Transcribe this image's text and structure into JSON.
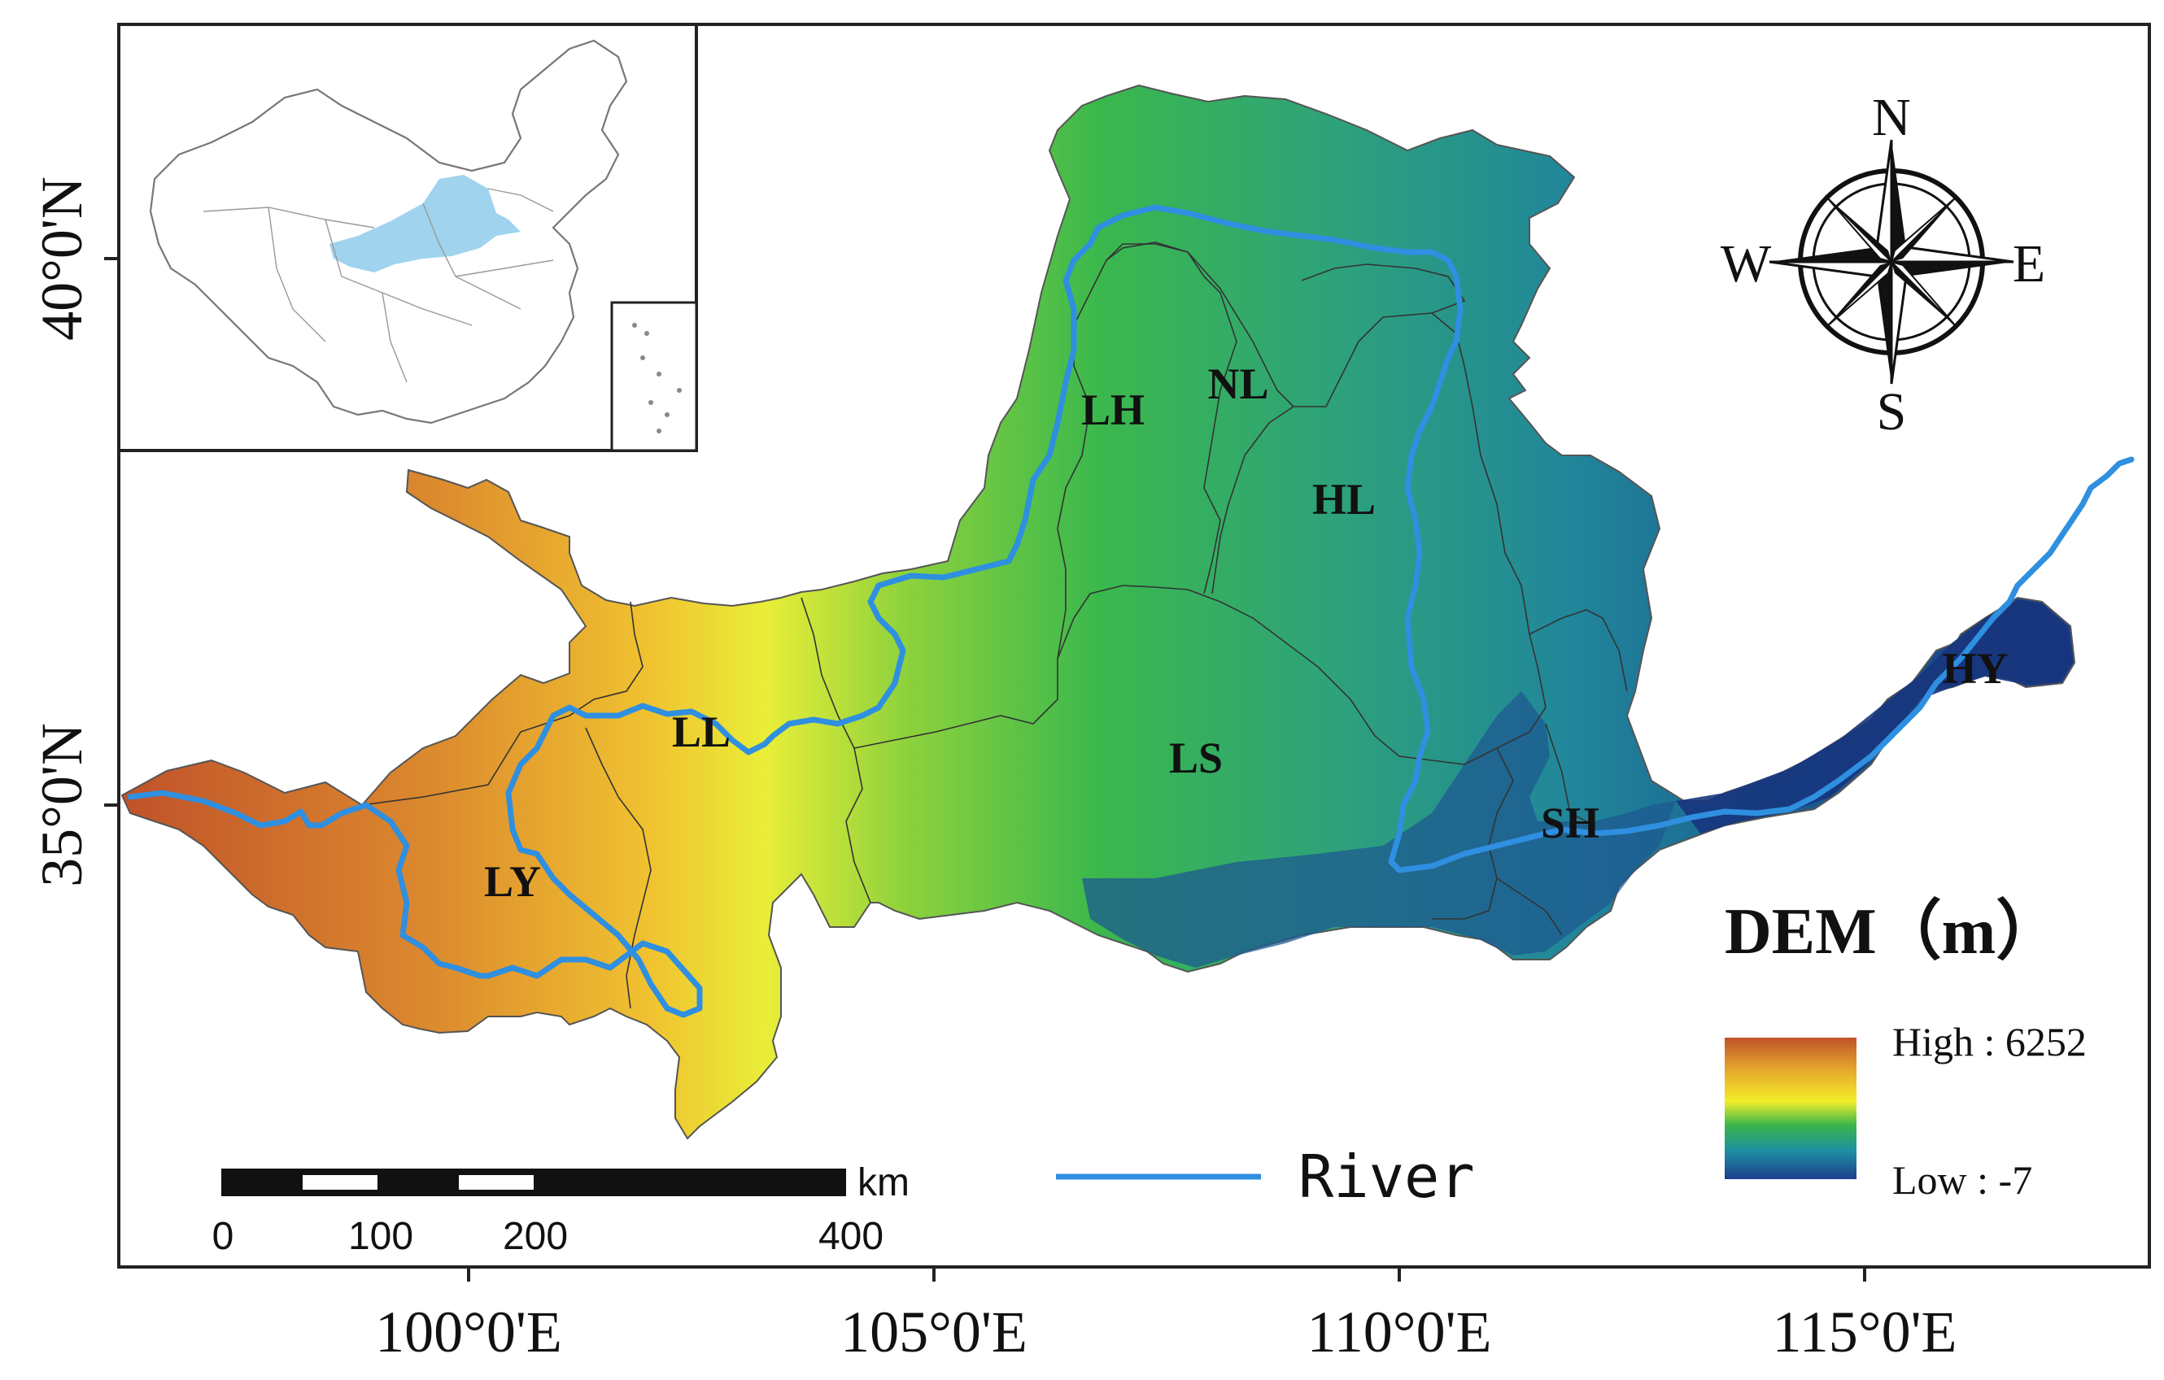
{
  "axes": {
    "x_ticks": [
      "100°0'E",
      "105°0'E",
      "110°0'E",
      "115°0'E"
    ],
    "y_ticks": [
      "40°0'N",
      "35°0'N"
    ]
  },
  "regions": [
    "LY",
    "LL",
    "LH",
    "NL",
    "HL",
    "LS",
    "SH",
    "HY"
  ],
  "compass": {
    "n": "N",
    "s": "S",
    "e": "E",
    "w": "W"
  },
  "legend": {
    "title": "DEM（m）",
    "high": "High : 6252",
    "low": "Low  : -7",
    "river": "River"
  },
  "scale_bar": {
    "unit": "km",
    "labels": [
      "0",
      "100",
      "200",
      "400"
    ]
  },
  "colors": {
    "river": "#2f8fe0",
    "inset_basin": "#9fd3ee",
    "ramp": [
      "#c0522a",
      "#e5a52c",
      "#f3ee2a",
      "#35b54a",
      "#1f8fa3",
      "#1a3f8c"
    ]
  }
}
